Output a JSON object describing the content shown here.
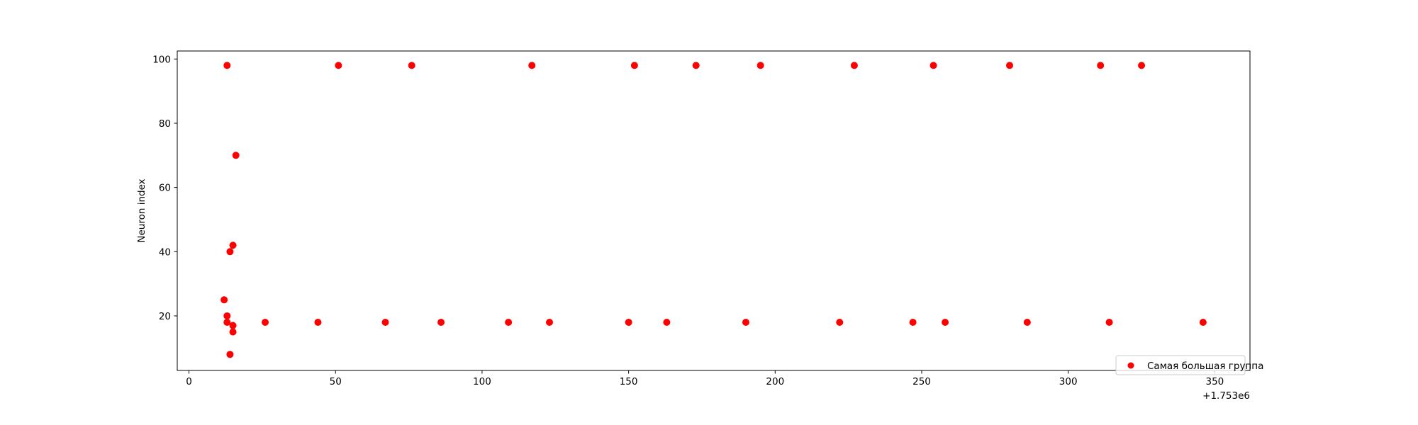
{
  "chart_data": {
    "type": "scatter",
    "title": "",
    "xlabel": "",
    "ylabel": "Neuron index",
    "x_offset_label": "+1.753e6",
    "xlim": [
      -4,
      362
    ],
    "ylim": [
      3,
      102.5
    ],
    "xticks": [
      0,
      50,
      100,
      150,
      200,
      250,
      300,
      350
    ],
    "xtick_labels": [
      "0",
      "50",
      "100",
      "150",
      "200",
      "250",
      "300",
      "350"
    ],
    "yticks": [
      20,
      40,
      60,
      80,
      100
    ],
    "ytick_labels": [
      "20",
      "40",
      "60",
      "80",
      "100"
    ],
    "grid": false,
    "legend_position": "lower right",
    "series": [
      {
        "name": "Самая большая группа",
        "color": "#ff0000",
        "marker": "circle",
        "points": [
          [
            13,
            98
          ],
          [
            51,
            98
          ],
          [
            76,
            98
          ],
          [
            117,
            98
          ],
          [
            152,
            98
          ],
          [
            173,
            98
          ],
          [
            195,
            98
          ],
          [
            227,
            98
          ],
          [
            254,
            98
          ],
          [
            280,
            98
          ],
          [
            311,
            98
          ],
          [
            325,
            98
          ],
          [
            16,
            70
          ],
          [
            15,
            42
          ],
          [
            14,
            40
          ],
          [
            12,
            25
          ],
          [
            13,
            20
          ],
          [
            13,
            18
          ],
          [
            15,
            17
          ],
          [
            15,
            15
          ],
          [
            14,
            8
          ],
          [
            26,
            18
          ],
          [
            44,
            18
          ],
          [
            67,
            18
          ],
          [
            86,
            18
          ],
          [
            109,
            18
          ],
          [
            123,
            18
          ],
          [
            150,
            18
          ],
          [
            163,
            18
          ],
          [
            190,
            18
          ],
          [
            222,
            18
          ],
          [
            247,
            18
          ],
          [
            258,
            18
          ],
          [
            286,
            18
          ],
          [
            314,
            18
          ],
          [
            346,
            18
          ]
        ]
      }
    ]
  }
}
